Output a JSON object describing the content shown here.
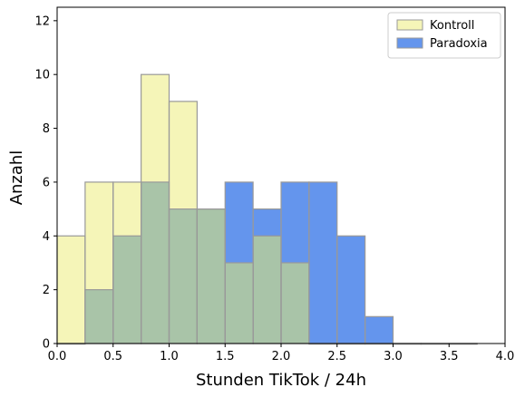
{
  "chart_data": {
    "type": "bar",
    "subtype": "histogram",
    "title": "",
    "xlabel": "Stunden TikTok / 24h",
    "ylabel": "Anzahl",
    "xlim": [
      0.0,
      4.0
    ],
    "ylim": [
      0,
      12.5
    ],
    "xticks": [
      "0.0",
      "0.5",
      "1.0",
      "1.5",
      "2.0",
      "2.5",
      "3.0",
      "3.5",
      "4.0"
    ],
    "yticks": [
      "0",
      "2",
      "4",
      "6",
      "8",
      "10",
      "12"
    ],
    "bin_edges": [
      0.0,
      0.25,
      0.5,
      0.75,
      1.0,
      1.25,
      1.5,
      1.75,
      2.0,
      2.25,
      2.5,
      2.75,
      3.0,
      3.25,
      3.5,
      3.75
    ],
    "series": [
      {
        "name": "Kontroll",
        "color": "#f5f5b8",
        "values": [
          4,
          6,
          6,
          10,
          9,
          5,
          3,
          4,
          3,
          0,
          0,
          0,
          0,
          0,
          0
        ]
      },
      {
        "name": "Paradoxia",
        "color": "#6495ed",
        "values": [
          0,
          2,
          4,
          6,
          5,
          5,
          6,
          5,
          6,
          6,
          4,
          1,
          0,
          0,
          0
        ]
      }
    ],
    "overlap_color": "#a9c4a8",
    "edge_color": "#999999",
    "grid": false,
    "legend_position": "top-right"
  }
}
